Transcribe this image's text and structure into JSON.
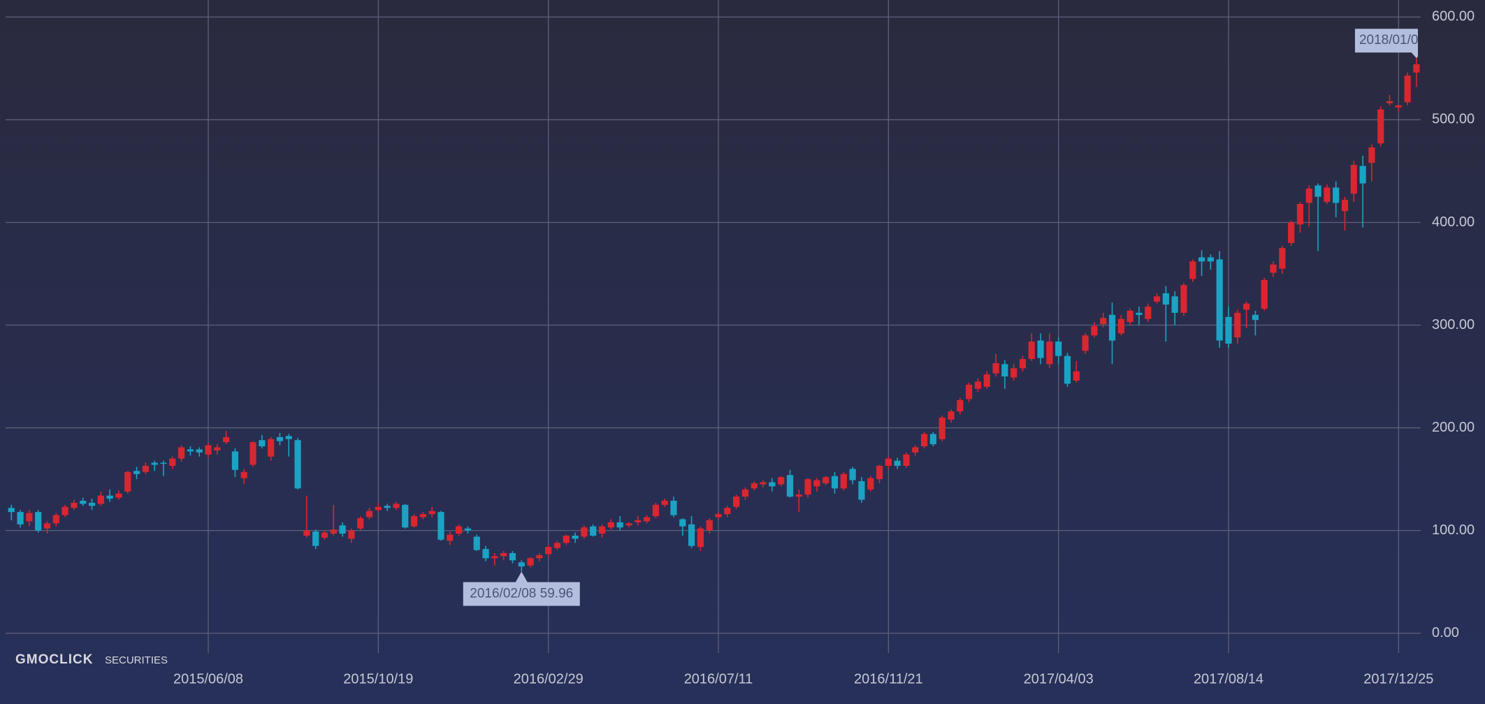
{
  "chart_data": {
    "type": "candlestick",
    "x": [
      "2015/01/05",
      "2015/01/12",
      "2015/01/19",
      "2015/01/26",
      "2015/02/02",
      "2015/02/09",
      "2015/02/16",
      "2015/02/23",
      "2015/03/02",
      "2015/03/09",
      "2015/03/16",
      "2015/03/23",
      "2015/03/30",
      "2015/04/06",
      "2015/04/13",
      "2015/04/20",
      "2015/04/27",
      "2015/05/04",
      "2015/05/11",
      "2015/05/18",
      "2015/05/25",
      "2015/06/01",
      "2015/06/08",
      "2015/06/15",
      "2015/06/22",
      "2015/06/29",
      "2015/07/06",
      "2015/07/13",
      "2015/07/20",
      "2015/07/27",
      "2015/08/03",
      "2015/08/10",
      "2015/08/17",
      "2015/08/24",
      "2015/08/31",
      "2015/09/07",
      "2015/09/14",
      "2015/09/21",
      "2015/09/28",
      "2015/10/05",
      "2015/10/12",
      "2015/10/19",
      "2015/10/26",
      "2015/11/02",
      "2015/11/09",
      "2015/11/16",
      "2015/11/23",
      "2015/11/30",
      "2015/12/07",
      "2015/12/14",
      "2015/12/21",
      "2015/12/28",
      "2016/01/04",
      "2016/01/11",
      "2016/01/18",
      "2016/01/25",
      "2016/02/01",
      "2016/02/08",
      "2016/02/15",
      "2016/02/22",
      "2016/02/29",
      "2016/03/07",
      "2016/03/14",
      "2016/03/21",
      "2016/03/28",
      "2016/04/04",
      "2016/04/11",
      "2016/04/18",
      "2016/04/25",
      "2016/05/02",
      "2016/05/09",
      "2016/05/16",
      "2016/05/23",
      "2016/05/30",
      "2016/06/06",
      "2016/06/13",
      "2016/06/20",
      "2016/06/27",
      "2016/07/04",
      "2016/07/11",
      "2016/07/18",
      "2016/07/25",
      "2016/08/01",
      "2016/08/08",
      "2016/08/15",
      "2016/08/22",
      "2016/08/29",
      "2016/09/05",
      "2016/09/12",
      "2016/09/19",
      "2016/09/26",
      "2016/10/03",
      "2016/10/10",
      "2016/10/17",
      "2016/10/24",
      "2016/10/31",
      "2016/11/07",
      "2016/11/14",
      "2016/11/21",
      "2016/11/28",
      "2016/12/05",
      "2016/12/12",
      "2016/12/19",
      "2016/12/26",
      "2017/01/02",
      "2017/01/09",
      "2017/01/16",
      "2017/01/23",
      "2017/01/30",
      "2017/02/06",
      "2017/02/13",
      "2017/02/20",
      "2017/02/27",
      "2017/03/06",
      "2017/03/13",
      "2017/03/20",
      "2017/03/27",
      "2017/04/03",
      "2017/04/10",
      "2017/04/17",
      "2017/04/24",
      "2017/05/01",
      "2017/05/08",
      "2017/05/15",
      "2017/05/22",
      "2017/05/29",
      "2017/06/05",
      "2017/06/12",
      "2017/06/19",
      "2017/06/26",
      "2017/07/03",
      "2017/07/10",
      "2017/07/17",
      "2017/07/24",
      "2017/07/31",
      "2017/08/07",
      "2017/08/14",
      "2017/08/21",
      "2017/08/28",
      "2017/09/04",
      "2017/09/11",
      "2017/09/18",
      "2017/09/25",
      "2017/10/02",
      "2017/10/09",
      "2017/10/16",
      "2017/10/23",
      "2017/10/30",
      "2017/11/06",
      "2017/11/13",
      "2017/11/20",
      "2017/11/27",
      "2017/12/04",
      "2017/12/11",
      "2017/12/18",
      "2017/12/25",
      "2018/01/01",
      "2018/01/08"
    ],
    "open": [
      122,
      118,
      109,
      118,
      102,
      107,
      115,
      122,
      129,
      127,
      126,
      134,
      132,
      138,
      158,
      157,
      166,
      166,
      163,
      170,
      179,
      179,
      174,
      178,
      186,
      177,
      151,
      164,
      188,
      172,
      191,
      192,
      188,
      95,
      99,
      93,
      97,
      105,
      92,
      102,
      113,
      120,
      124,
      122,
      125,
      104,
      113,
      116,
      118,
      90,
      97,
      102,
      94,
      82,
      73,
      75,
      78,
      69,
      66,
      73,
      77,
      83,
      88,
      95,
      94,
      104,
      97,
      103,
      108,
      105,
      108,
      109,
      114,
      125,
      129,
      111,
      106,
      84,
      100,
      113,
      116,
      123,
      133,
      141,
      145,
      147,
      145,
      154,
      133,
      135,
      143,
      146,
      153,
      141,
      160,
      148,
      140,
      150,
      163,
      168,
      163,
      176,
      182,
      194,
      189,
      208,
      216,
      228,
      238,
      240,
      253,
      262,
      249,
      258,
      267,
      285,
      262,
      284,
      270,
      246,
      275,
      290,
      301,
      310,
      292,
      303,
      312,
      306,
      323,
      331,
      328,
      312,
      345,
      366,
      366,
      364,
      308,
      288,
      315,
      310,
      316,
      351,
      355,
      380,
      398,
      419,
      436,
      420,
      434,
      411,
      428,
      455,
      458,
      477,
      516,
      512,
      517,
      546
    ],
    "high": [
      125,
      120,
      120,
      120,
      109,
      117,
      125,
      130,
      132,
      131,
      138,
      140,
      139,
      158,
      162,
      166,
      168,
      168,
      172,
      183,
      182,
      181,
      185,
      184,
      197,
      180,
      160,
      187,
      193,
      191,
      195,
      194,
      190,
      134,
      101,
      100,
      125,
      108,
      102,
      114,
      122,
      127,
      126,
      128,
      126,
      116,
      118,
      123,
      119,
      99,
      106,
      104,
      96,
      85,
      78,
      80,
      80,
      71,
      74,
      78,
      86,
      90,
      96,
      98,
      105,
      106,
      106,
      111,
      114,
      108,
      114,
      115,
      127,
      131,
      133,
      112,
      114,
      104,
      112,
      118,
      124,
      135,
      142,
      148,
      149,
      151,
      153,
      159,
      140,
      151,
      151,
      153,
      157,
      157,
      162,
      152,
      153,
      164,
      172,
      171,
      176,
      183,
      196,
      196,
      212,
      218,
      229,
      244,
      248,
      255,
      272,
      266,
      262,
      270,
      292,
      292,
      292,
      288,
      273,
      265,
      292,
      303,
      312,
      322,
      310,
      316,
      318,
      321,
      331,
      338,
      333,
      341,
      364,
      373,
      369,
      372,
      318,
      315,
      323,
      314,
      346,
      362,
      377,
      402,
      420,
      436,
      438,
      437,
      440,
      425,
      460,
      465,
      476,
      513,
      524,
      514,
      546,
      560
    ],
    "low": [
      110,
      103,
      104,
      98,
      97,
      104,
      113,
      120,
      124,
      120,
      124,
      128,
      130,
      136,
      150,
      155,
      158,
      153,
      160,
      167,
      173,
      172,
      171,
      174,
      184,
      152,
      145,
      162,
      180,
      168,
      183,
      172,
      140,
      93,
      82,
      91,
      95,
      94,
      88,
      100,
      111,
      118,
      119,
      120,
      102,
      103,
      111,
      113,
      90,
      86,
      95,
      97,
      80,
      70,
      66,
      71,
      68,
      59.96,
      64,
      70,
      74,
      81,
      86,
      88,
      92,
      94,
      93,
      101,
      100,
      103,
      105,
      107,
      112,
      123,
      113,
      95,
      83,
      80,
      97,
      111,
      113,
      121,
      130,
      139,
      142,
      138,
      143,
      132,
      118,
      132,
      138,
      144,
      136,
      139,
      145,
      127,
      138,
      146,
      160,
      160,
      161,
      173,
      180,
      182,
      187,
      205,
      213,
      225,
      235,
      238,
      250,
      238,
      246,
      255,
      265,
      262,
      258,
      262,
      240,
      244,
      272,
      288,
      298,
      262,
      290,
      300,
      300,
      303,
      321,
      284,
      300,
      309,
      342,
      348,
      354,
      278,
      278,
      282,
      297,
      290,
      314,
      347,
      350,
      377,
      390,
      396,
      372,
      418,
      405,
      392,
      420,
      395,
      440,
      474,
      514,
      508,
      514,
      532
    ],
    "close": [
      118,
      106,
      117,
      100,
      107,
      115,
      123,
      127,
      126,
      124,
      134,
      131,
      136,
      157,
      155,
      163,
      164,
      165,
      170,
      181,
      177,
      176,
      183,
      181,
      191,
      159,
      157,
      186,
      182,
      189,
      187,
      189,
      141,
      100,
      85,
      98,
      101,
      97,
      100,
      112,
      119,
      123,
      122,
      126,
      103,
      114,
      116,
      119,
      91,
      96,
      104,
      100,
      81,
      73,
      75,
      78,
      71,
      65,
      73,
      76,
      84,
      88,
      95,
      92,
      103,
      95,
      104,
      108,
      103,
      107,
      110,
      113,
      125,
      129,
      115,
      104,
      85,
      102,
      110,
      116,
      122,
      133,
      140,
      146,
      147,
      143,
      152,
      133,
      135,
      150,
      149,
      152,
      141,
      155,
      149,
      130,
      151,
      163,
      170,
      163,
      174,
      181,
      194,
      184,
      210,
      216,
      227,
      242,
      245,
      252,
      263,
      250,
      258,
      267,
      284,
      268,
      284,
      270,
      243,
      255,
      290,
      299,
      307,
      285,
      306,
      314,
      310,
      318,
      328,
      320,
      312,
      339,
      362,
      362,
      362,
      285,
      282,
      312,
      321,
      305,
      344,
      359,
      375,
      400,
      418,
      433,
      425,
      434,
      419,
      422,
      456,
      438,
      473,
      510,
      518,
      514,
      543,
      554
    ],
    "up_color": "#da2630",
    "down_color": "#1ba3c4",
    "ylim": [
      0,
      600
    ],
    "yticks": [
      {
        "value": 0,
        "label": "0.00"
      },
      {
        "value": 100,
        "label": "100.00"
      },
      {
        "value": 200,
        "label": "200.00"
      },
      {
        "value": 300,
        "label": "300.00"
      },
      {
        "value": 400,
        "label": "400.00"
      },
      {
        "value": 500,
        "label": "500.00"
      },
      {
        "value": 600,
        "label": "600.00"
      }
    ],
    "xticks": [
      "2015/06/08",
      "2015/10/19",
      "2016/02/29",
      "2016/07/11",
      "2016/11/21",
      "2017/04/03",
      "2017/08/14",
      "2017/12/25"
    ],
    "grid": true,
    "annotations": [
      {
        "text": "2016/02/08 59.96",
        "x": "2016/02/08",
        "y": 59.96,
        "side": "below"
      },
      {
        "text": "2018/01/0",
        "x": "2018/01/08",
        "y": 560,
        "side": "above"
      }
    ],
    "watermark": {
      "brand": "GMOCLICK",
      "sub": "SECURITIES"
    }
  }
}
